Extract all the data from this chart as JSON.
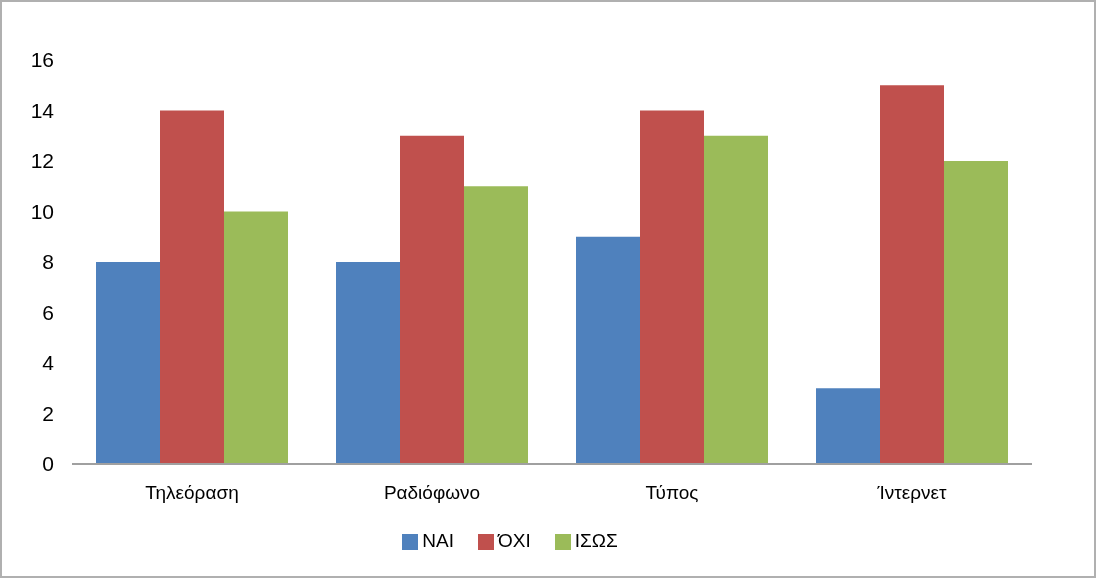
{
  "chart_data": {
    "type": "bar",
    "categories": [
      "Τηλεόραση",
      "Ραδιόφωνο",
      "Τύπος",
      "Ίντερνετ"
    ],
    "series": [
      {
        "name": "ΝΑΙ",
        "color": "#4f81bd",
        "values": [
          8,
          8,
          9,
          3
        ]
      },
      {
        "name": "ΌΧΙ",
        "color": "#c0504d",
        "values": [
          14,
          13,
          14,
          15
        ]
      },
      {
        "name": "ΙΣΩΣ",
        "color": "#9bbb59",
        "values": [
          10,
          11,
          13,
          12
        ]
      }
    ],
    "ylim": [
      0,
      16
    ],
    "yticks": [
      0,
      2,
      4,
      6,
      8,
      10,
      12,
      14,
      16
    ],
    "grid": false,
    "legend": "bottom"
  }
}
